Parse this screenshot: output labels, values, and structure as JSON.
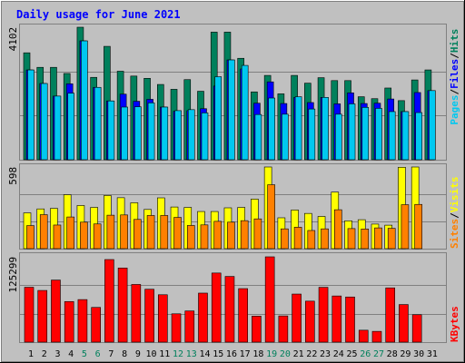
{
  "title": "Daily usage for June 2021",
  "days": [
    "1",
    "2",
    "3",
    "4",
    "5",
    "6",
    "7",
    "8",
    "9",
    "10",
    "11",
    "12",
    "13",
    "14",
    "15",
    "16",
    "17",
    "18",
    "19",
    "20",
    "21",
    "22",
    "23",
    "24",
    "25",
    "26",
    "27",
    "28",
    "29",
    "30",
    "31"
  ],
  "weekend_days": [
    5,
    6,
    12,
    13,
    19,
    20,
    26,
    27
  ],
  "colors": {
    "hits": "#00805c",
    "files": "#0000ff",
    "pages": "#00c8f0",
    "visits": "#ffff00",
    "sites": "#ff8000",
    "kbytes": "#ff0000",
    "background": "#c0c0c0",
    "title": "#0000ff",
    "weekend_label": "#00805c"
  },
  "chart_data": [
    {
      "type": "bar",
      "panel": "top",
      "max_label": "4102",
      "ylim": [
        0,
        4102
      ],
      "legend": [
        {
          "name": "Pages",
          "color": "#00c8f0"
        },
        {
          "name": "Files",
          "color": "#0000ff"
        },
        {
          "name": "Hits",
          "color": "#00805c"
        }
      ],
      "series": [
        {
          "name": "Hits",
          "values": [
            3310,
            2860,
            2860,
            2670,
            4102,
            2550,
            3510,
            2740,
            2590,
            2520,
            2330,
            2180,
            2480,
            2120,
            3950,
            3950,
            3140,
            2100,
            2610,
            2040,
            2610,
            2370,
            2540,
            2450,
            2450,
            1950,
            1890,
            2220,
            1830,
            2470,
            2780
          ]
        },
        {
          "name": "Files",
          "values": [
            2780,
            2360,
            1970,
            2350,
            3680,
            2240,
            1820,
            2030,
            1810,
            1870,
            1630,
            1500,
            1520,
            1580,
            2280,
            3090,
            2810,
            1750,
            2410,
            1740,
            1930,
            1770,
            1930,
            1730,
            2070,
            1740,
            1750,
            1880,
            1490,
            2080,
            2140
          ]
        },
        {
          "name": "Pages",
          "values": [
            2780,
            2360,
            1970,
            2060,
            3680,
            2240,
            1820,
            1630,
            1640,
            1760,
            1630,
            1520,
            1550,
            1450,
            2570,
            3090,
            2920,
            1400,
            1910,
            1410,
            1950,
            1570,
            1930,
            1410,
            1730,
            1620,
            1590,
            1490,
            1490,
            1460,
            2140
          ]
        }
      ]
    },
    {
      "type": "bar",
      "panel": "middle",
      "max_label": "598",
      "ylim": [
        0,
        598
      ],
      "legend": [
        {
          "name": "Sites",
          "color": "#ff8000"
        },
        {
          "name": "Visits",
          "color": "#ffff00"
        }
      ],
      "series": [
        {
          "name": "Visits",
          "values": [
            262,
            291,
            295,
            395,
            316,
            302,
            389,
            373,
            336,
            287,
            372,
            305,
            302,
            272,
            272,
            299,
            302,
            363,
            598,
            226,
            283,
            258,
            236,
            414,
            204,
            212,
            180,
            172,
            596,
            598,
            0
          ]
        },
        {
          "name": "Sites",
          "values": [
            169,
            249,
            173,
            232,
            194,
            181,
            245,
            247,
            214,
            243,
            243,
            229,
            170,
            174,
            200,
            194,
            205,
            218,
            468,
            145,
            157,
            133,
            145,
            285,
            147,
            144,
            152,
            149,
            322,
            324,
            0
          ]
        }
      ]
    },
    {
      "type": "bar",
      "panel": "bottom",
      "max_label": "125299",
      "ylim": [
        0,
        125299
      ],
      "legend": [
        {
          "name": "KBytes",
          "color": "#ff0000"
        }
      ],
      "series": [
        {
          "name": "KBytes",
          "values": [
            80600,
            75900,
            91200,
            59600,
            62500,
            51000,
            121300,
            108900,
            84700,
            77700,
            69600,
            41600,
            45800,
            72000,
            101500,
            96500,
            78600,
            38200,
            125299,
            38500,
            70600,
            60200,
            80500,
            67800,
            66300,
            17500,
            15800,
            79700,
            55200,
            40300,
            0
          ]
        }
      ]
    }
  ]
}
